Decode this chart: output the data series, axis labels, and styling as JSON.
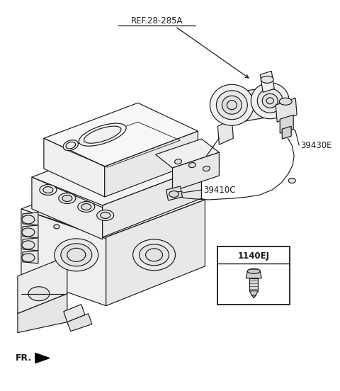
{
  "bg_color": "#ffffff",
  "line_color": "#1a1a1a",
  "label_color": "#1a1a1a",
  "labels": {
    "ref": "REF.28-285A",
    "part1": "39430E",
    "part2": "39410C",
    "part3": "1140EJ",
    "fr": "FR."
  },
  "fig_width": 4.8,
  "fig_height": 5.52,
  "dpi": 100
}
